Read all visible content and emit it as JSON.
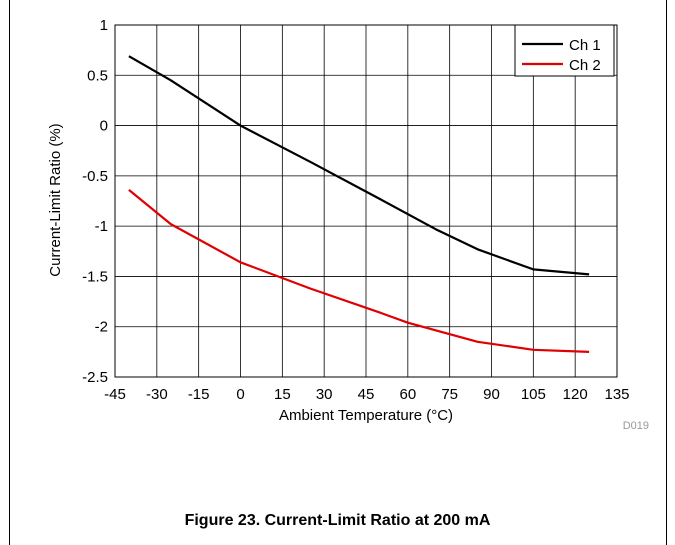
{
  "caption": "Figure 23. Current-Limit Ratio at 200 mA",
  "chart_data": {
    "type": "line",
    "title": "",
    "xlabel": "Ambient Temperature (°C)",
    "ylabel": "Current-Limit Ratio (%)",
    "xlim": [
      -45,
      135
    ],
    "ylim": [
      -2.5,
      1
    ],
    "xticks": [
      -45,
      -30,
      -15,
      0,
      15,
      30,
      45,
      60,
      75,
      90,
      105,
      120,
      135
    ],
    "xtick_labels": [
      "-45",
      "-30",
      "-15",
      "0",
      "15",
      "30",
      "45",
      "60",
      "75",
      "90",
      "105",
      "120",
      "135"
    ],
    "yticks": [
      -2.5,
      -2,
      -1.5,
      -1,
      -0.5,
      0,
      0.5,
      1
    ],
    "ytick_labels": [
      "-2.5",
      "-2",
      "-1.5",
      "-1",
      "-0.5",
      "0",
      "0.5",
      "1"
    ],
    "grid": true,
    "legend_position": "top-right",
    "series": [
      {
        "name": "Ch 1",
        "color": "#000000",
        "x": [
          -40,
          -25,
          0,
          25,
          50,
          70,
          85,
          105,
          125
        ],
        "y": [
          0.69,
          0.45,
          0.0,
          -0.36,
          -0.73,
          -1.03,
          -1.23,
          -1.43,
          -1.48
        ]
      },
      {
        "name": "Ch 2",
        "color": "#e00000",
        "x": [
          -40,
          -25,
          0,
          25,
          50,
          60,
          85,
          105,
          125
        ],
        "y": [
          -0.64,
          -0.98,
          -1.36,
          -1.62,
          -1.86,
          -1.96,
          -2.15,
          -2.23,
          -2.25
        ]
      }
    ],
    "annotations": [
      "D019"
    ]
  }
}
